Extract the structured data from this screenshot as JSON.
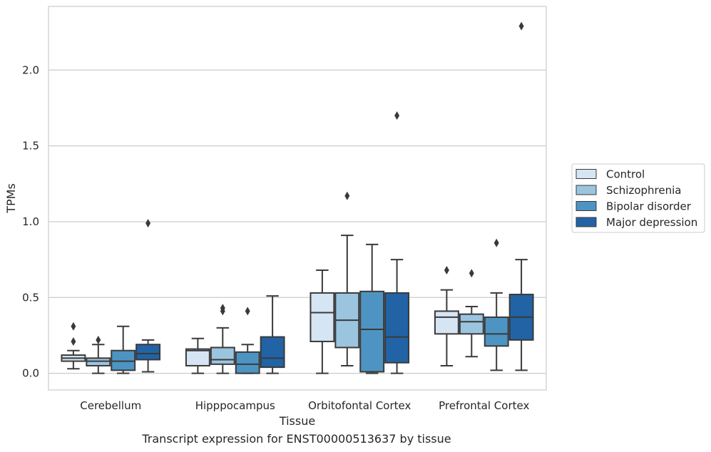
{
  "caption": "Transcript expression for ENST00000513637 by tissue",
  "chart_data": {
    "type": "box",
    "title": "",
    "xlabel": "Tissue",
    "ylabel": "TPMs",
    "ylim": [
      -0.11,
      2.42
    ],
    "yticks": [
      "0.0",
      "0.5",
      "1.0",
      "1.5",
      "2.0"
    ],
    "grid": "horizontal",
    "legend_position": "right",
    "categories": [
      "Cerebellum",
      "Hipppocampus",
      "Orbitofontal Cortex",
      "Prefrontal Cortex"
    ],
    "series": [
      {
        "name": "Control",
        "color": "#d6e5f4",
        "boxes": [
          {
            "whislo": 0.03,
            "q1": 0.08,
            "med": 0.1,
            "q3": 0.12,
            "whishi": 0.15,
            "fliers": [
              0.21,
              0.31
            ]
          },
          {
            "whislo": 0.0,
            "q1": 0.05,
            "med": 0.15,
            "q3": 0.16,
            "whishi": 0.23,
            "fliers": []
          },
          {
            "whislo": 0.0,
            "q1": 0.21,
            "med": 0.4,
            "q3": 0.53,
            "whishi": 0.68,
            "fliers": []
          },
          {
            "whislo": 0.05,
            "q1": 0.26,
            "med": 0.37,
            "q3": 0.41,
            "whishi": 0.55,
            "fliers": [
              0.68
            ]
          }
        ]
      },
      {
        "name": "Schizophrenia",
        "color": "#9bc4df",
        "boxes": [
          {
            "whislo": 0.0,
            "q1": 0.05,
            "med": 0.08,
            "q3": 0.1,
            "whishi": 0.19,
            "fliers": [
              0.22
            ]
          },
          {
            "whislo": 0.0,
            "q1": 0.06,
            "med": 0.09,
            "q3": 0.17,
            "whishi": 0.3,
            "fliers": [
              0.41,
              0.43
            ]
          },
          {
            "whislo": 0.05,
            "q1": 0.17,
            "med": 0.35,
            "q3": 0.53,
            "whishi": 0.91,
            "fliers": [
              1.17
            ]
          },
          {
            "whislo": 0.11,
            "q1": 0.26,
            "med": 0.34,
            "q3": 0.39,
            "whishi": 0.44,
            "fliers": [
              0.66
            ]
          }
        ]
      },
      {
        "name": "Bipolar disorder",
        "color": "#4d94c3",
        "boxes": [
          {
            "whislo": 0.0,
            "q1": 0.02,
            "med": 0.08,
            "q3": 0.15,
            "whishi": 0.31,
            "fliers": []
          },
          {
            "whislo": 0.0,
            "q1": 0.0,
            "med": 0.06,
            "q3": 0.14,
            "whishi": 0.19,
            "fliers": [
              0.41
            ]
          },
          {
            "whislo": 0.0,
            "q1": 0.01,
            "med": 0.29,
            "q3": 0.54,
            "whishi": 0.85,
            "fliers": []
          },
          {
            "whislo": 0.02,
            "q1": 0.18,
            "med": 0.26,
            "q3": 0.37,
            "whishi": 0.53,
            "fliers": [
              0.86
            ]
          }
        ]
      },
      {
        "name": "Major depression",
        "color": "#2163a5",
        "boxes": [
          {
            "whislo": 0.01,
            "q1": 0.09,
            "med": 0.13,
            "q3": 0.19,
            "whishi": 0.22,
            "fliers": [
              0.99
            ]
          },
          {
            "whislo": 0.0,
            "q1": 0.04,
            "med": 0.1,
            "q3": 0.24,
            "whishi": 0.51,
            "fliers": []
          },
          {
            "whislo": 0.0,
            "q1": 0.07,
            "med": 0.24,
            "q3": 0.53,
            "whishi": 0.75,
            "fliers": [
              1.7
            ]
          },
          {
            "whislo": 0.02,
            "q1": 0.22,
            "med": 0.37,
            "q3": 0.52,
            "whishi": 0.75,
            "fliers": [
              2.29
            ]
          }
        ]
      }
    ]
  }
}
